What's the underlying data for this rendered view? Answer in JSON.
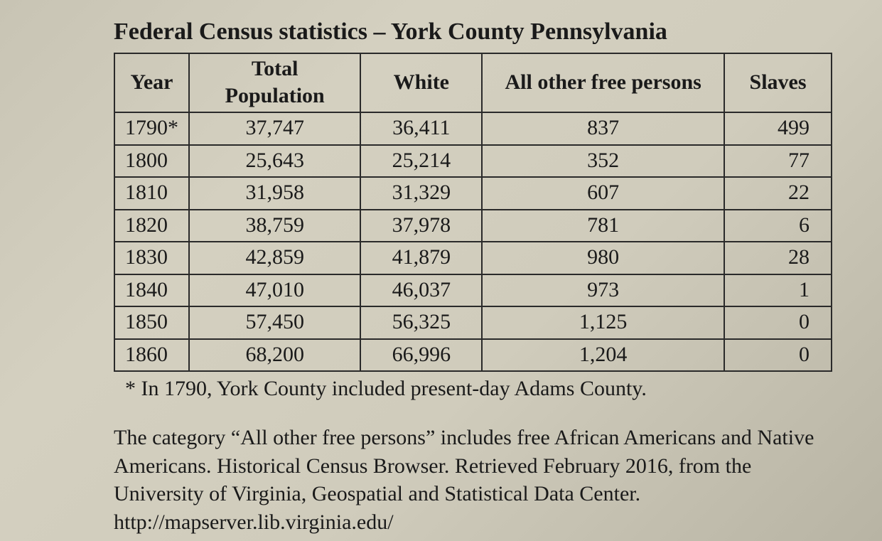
{
  "title": "Federal Census statistics – York County Pennsylvania",
  "table": {
    "type": "table",
    "columns": [
      "Year",
      "Total Population",
      "White",
      "All other free persons",
      "Slaves"
    ],
    "column_align": [
      "left",
      "center",
      "center",
      "center",
      "right"
    ],
    "border_color": "#2a2a2a",
    "text_color": "#1a1a1a",
    "fontsize": 30,
    "header_fontweight": 700,
    "rows": [
      [
        "1790*",
        "37,747",
        "36,411",
        "837",
        "499"
      ],
      [
        "1800",
        "25,643",
        "25,214",
        "352",
        "77"
      ],
      [
        "1810",
        "31,958",
        "31,329",
        "607",
        "22"
      ],
      [
        "1820",
        "38,759",
        "37,978",
        "781",
        "6"
      ],
      [
        "1830",
        "42,859",
        "41,879",
        "980",
        "28"
      ],
      [
        "1840",
        "47,010",
        "46,037",
        "973",
        "1"
      ],
      [
        "1850",
        "57,450",
        "56,325",
        "1,125",
        "0"
      ],
      [
        "1860",
        "68,200",
        "66,996",
        "1,204",
        "0"
      ]
    ]
  },
  "footnote": "* In 1790, York County included present-day Adams County.",
  "paragraph": "The category “All other free persons” includes free African Americans and Native Americans. Historical Census Browser. Retrieved February 2016, from the University of Virginia, Geospatial and Statistical Data Center. http://mapserver.lib.virginia.edu/",
  "background_gradient": [
    "#c8c4b4",
    "#d4d0c0",
    "#d0ccbc",
    "#b8b4a4"
  ]
}
